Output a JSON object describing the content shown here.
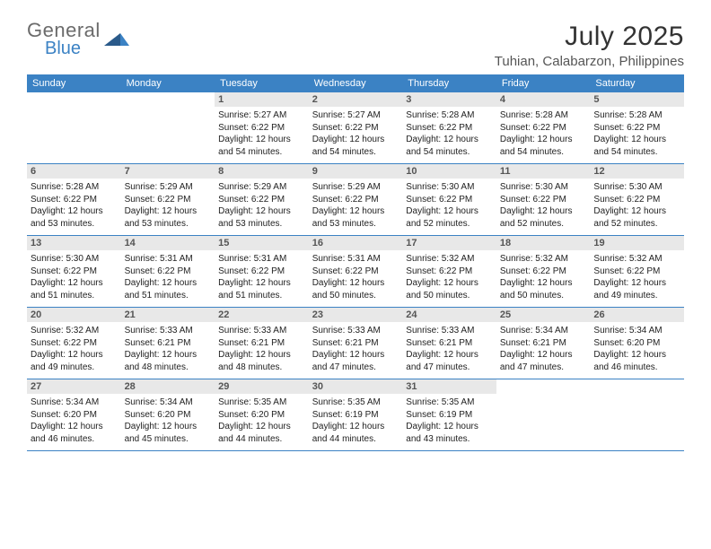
{
  "logo": {
    "line1": "General",
    "line2": "Blue"
  },
  "title": "July 2025",
  "location": "Tuhian, Calabarzon, Philippines",
  "colors": {
    "header_bar": "#3b82c4",
    "header_text": "#ffffff",
    "daynum_bg": "#e8e8e8",
    "row_border": "#3b82c4",
    "logo_gray": "#6b6b6b",
    "logo_blue": "#3b82c4"
  },
  "fonts": {
    "title_size_pt": 22,
    "location_size_pt": 11,
    "weekday_size_pt": 8,
    "daynum_size_pt": 8,
    "info_size_pt": 7.5
  },
  "weekdays": [
    "Sunday",
    "Monday",
    "Tuesday",
    "Wednesday",
    "Thursday",
    "Friday",
    "Saturday"
  ],
  "weeks": [
    [
      {
        "day": null
      },
      {
        "day": null
      },
      {
        "day": 1,
        "sunrise": "5:27 AM",
        "sunset": "6:22 PM",
        "daylight": "12 hours and 54 minutes."
      },
      {
        "day": 2,
        "sunrise": "5:27 AM",
        "sunset": "6:22 PM",
        "daylight": "12 hours and 54 minutes."
      },
      {
        "day": 3,
        "sunrise": "5:28 AM",
        "sunset": "6:22 PM",
        "daylight": "12 hours and 54 minutes."
      },
      {
        "day": 4,
        "sunrise": "5:28 AM",
        "sunset": "6:22 PM",
        "daylight": "12 hours and 54 minutes."
      },
      {
        "day": 5,
        "sunrise": "5:28 AM",
        "sunset": "6:22 PM",
        "daylight": "12 hours and 54 minutes."
      }
    ],
    [
      {
        "day": 6,
        "sunrise": "5:28 AM",
        "sunset": "6:22 PM",
        "daylight": "12 hours and 53 minutes."
      },
      {
        "day": 7,
        "sunrise": "5:29 AM",
        "sunset": "6:22 PM",
        "daylight": "12 hours and 53 minutes."
      },
      {
        "day": 8,
        "sunrise": "5:29 AM",
        "sunset": "6:22 PM",
        "daylight": "12 hours and 53 minutes."
      },
      {
        "day": 9,
        "sunrise": "5:29 AM",
        "sunset": "6:22 PM",
        "daylight": "12 hours and 53 minutes."
      },
      {
        "day": 10,
        "sunrise": "5:30 AM",
        "sunset": "6:22 PM",
        "daylight": "12 hours and 52 minutes."
      },
      {
        "day": 11,
        "sunrise": "5:30 AM",
        "sunset": "6:22 PM",
        "daylight": "12 hours and 52 minutes."
      },
      {
        "day": 12,
        "sunrise": "5:30 AM",
        "sunset": "6:22 PM",
        "daylight": "12 hours and 52 minutes."
      }
    ],
    [
      {
        "day": 13,
        "sunrise": "5:30 AM",
        "sunset": "6:22 PM",
        "daylight": "12 hours and 51 minutes."
      },
      {
        "day": 14,
        "sunrise": "5:31 AM",
        "sunset": "6:22 PM",
        "daylight": "12 hours and 51 minutes."
      },
      {
        "day": 15,
        "sunrise": "5:31 AM",
        "sunset": "6:22 PM",
        "daylight": "12 hours and 51 minutes."
      },
      {
        "day": 16,
        "sunrise": "5:31 AM",
        "sunset": "6:22 PM",
        "daylight": "12 hours and 50 minutes."
      },
      {
        "day": 17,
        "sunrise": "5:32 AM",
        "sunset": "6:22 PM",
        "daylight": "12 hours and 50 minutes."
      },
      {
        "day": 18,
        "sunrise": "5:32 AM",
        "sunset": "6:22 PM",
        "daylight": "12 hours and 50 minutes."
      },
      {
        "day": 19,
        "sunrise": "5:32 AM",
        "sunset": "6:22 PM",
        "daylight": "12 hours and 49 minutes."
      }
    ],
    [
      {
        "day": 20,
        "sunrise": "5:32 AM",
        "sunset": "6:22 PM",
        "daylight": "12 hours and 49 minutes."
      },
      {
        "day": 21,
        "sunrise": "5:33 AM",
        "sunset": "6:21 PM",
        "daylight": "12 hours and 48 minutes."
      },
      {
        "day": 22,
        "sunrise": "5:33 AM",
        "sunset": "6:21 PM",
        "daylight": "12 hours and 48 minutes."
      },
      {
        "day": 23,
        "sunrise": "5:33 AM",
        "sunset": "6:21 PM",
        "daylight": "12 hours and 47 minutes."
      },
      {
        "day": 24,
        "sunrise": "5:33 AM",
        "sunset": "6:21 PM",
        "daylight": "12 hours and 47 minutes."
      },
      {
        "day": 25,
        "sunrise": "5:34 AM",
        "sunset": "6:21 PM",
        "daylight": "12 hours and 47 minutes."
      },
      {
        "day": 26,
        "sunrise": "5:34 AM",
        "sunset": "6:20 PM",
        "daylight": "12 hours and 46 minutes."
      }
    ],
    [
      {
        "day": 27,
        "sunrise": "5:34 AM",
        "sunset": "6:20 PM",
        "daylight": "12 hours and 46 minutes."
      },
      {
        "day": 28,
        "sunrise": "5:34 AM",
        "sunset": "6:20 PM",
        "daylight": "12 hours and 45 minutes."
      },
      {
        "day": 29,
        "sunrise": "5:35 AM",
        "sunset": "6:20 PM",
        "daylight": "12 hours and 44 minutes."
      },
      {
        "day": 30,
        "sunrise": "5:35 AM",
        "sunset": "6:19 PM",
        "daylight": "12 hours and 44 minutes."
      },
      {
        "day": 31,
        "sunrise": "5:35 AM",
        "sunset": "6:19 PM",
        "daylight": "12 hours and 43 minutes."
      },
      {
        "day": null
      },
      {
        "day": null
      }
    ]
  ],
  "labels": {
    "sunrise": "Sunrise:",
    "sunset": "Sunset:",
    "daylight": "Daylight:"
  }
}
